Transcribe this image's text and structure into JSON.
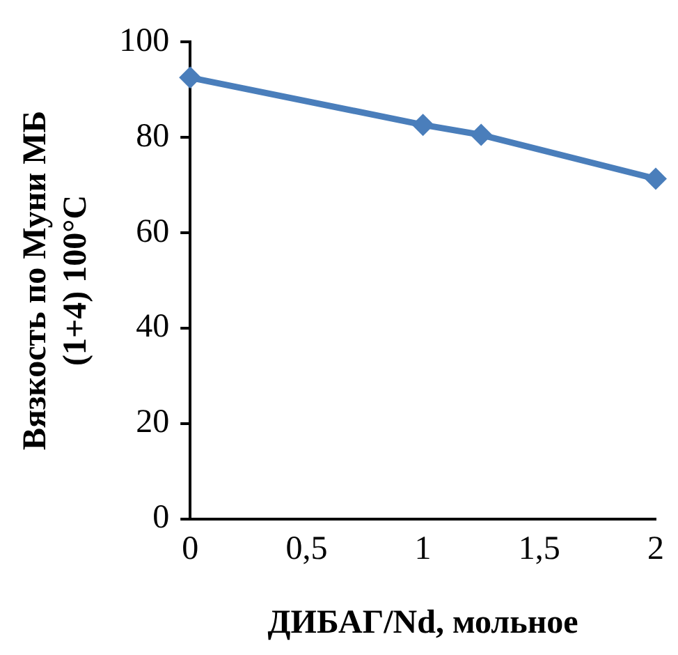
{
  "chart_data": {
    "type": "line",
    "xlabel": "ДИБАГ/Nd, мольное",
    "ylabel": "Вязкость по Муни МБ\n(1+4) 100°С",
    "x": [
      0,
      1,
      1.25,
      2
    ],
    "series": [
      {
        "color": "#4a7ebb",
        "values": [
          92.5,
          82.6,
          80.5,
          71.3
        ]
      }
    ],
    "xlim": [
      0,
      2
    ],
    "xticks": [
      {
        "value": 0,
        "label": "0"
      },
      {
        "value": 0.5,
        "label": "0,5"
      },
      {
        "value": 1,
        "label": "1"
      },
      {
        "value": 1.5,
        "label": "1,5"
      },
      {
        "value": 2,
        "label": "2"
      }
    ],
    "ylim": [
      0,
      100
    ],
    "yticks": [
      0,
      20,
      40,
      60,
      80,
      100
    ],
    "grid": false,
    "legend": false,
    "marker": "diamond",
    "line_style": "solid"
  }
}
